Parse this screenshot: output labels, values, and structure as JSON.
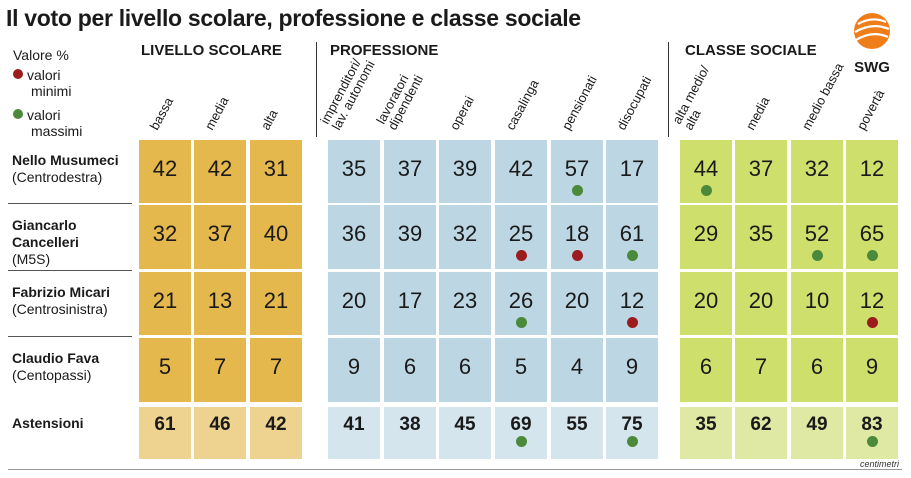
{
  "title": "Il voto per livello scolare, professione e classe sociale",
  "legend": {
    "heading": "Valore %",
    "min_label": [
      "valori",
      "minimi"
    ],
    "max_label": [
      "valori",
      "massimi"
    ],
    "min_color": "#9b1c1c",
    "max_color": "#4a8a3a"
  },
  "brand": "SWG",
  "credit": "centimetri",
  "colors": {
    "scolare": "#e5b84d",
    "scolare_light": "#eed390",
    "professione": "#bcd6e3",
    "professione_light": "#d4e5ee",
    "sociale": "#cfdf6c",
    "sociale_light": "#dfe9a3"
  },
  "chart_data": {
    "type": "table",
    "groups": [
      {
        "key": "scolare",
        "name": "LIVELLO SCOLARE",
        "columns": [
          "bassa",
          "media",
          "alta"
        ]
      },
      {
        "key": "professione",
        "name": "PROFESSIONE",
        "columns": [
          [
            "imprenditori/",
            "lav. autonomi"
          ],
          [
            "lavoratori",
            "dipendenti"
          ],
          [
            "operai"
          ],
          [
            "casalinga"
          ],
          [
            "pensionati"
          ],
          [
            "disocupati"
          ]
        ]
      },
      {
        "key": "sociale",
        "name": "CLASSE SOCIALE",
        "columns": [
          [
            "alta medio/",
            "alta"
          ],
          [
            "media"
          ],
          [
            "medio bassa"
          ],
          [
            "povertà"
          ]
        ]
      }
    ],
    "rows": [
      {
        "name": "Nello Musumeci",
        "sub": "(Centrodestra)",
        "values": [
          42,
          42,
          31,
          35,
          37,
          39,
          42,
          57,
          17,
          44,
          37,
          32,
          12
        ],
        "markers": [
          null,
          null,
          null,
          null,
          null,
          null,
          null,
          "max",
          null,
          "max",
          null,
          null,
          null
        ]
      },
      {
        "name": "Giancarlo Cancelleri",
        "sub": "(M5S)",
        "values": [
          32,
          37,
          40,
          36,
          39,
          32,
          25,
          18,
          61,
          29,
          35,
          52,
          65
        ],
        "markers": [
          null,
          null,
          null,
          null,
          null,
          null,
          "min",
          "min",
          "max",
          null,
          null,
          "max",
          "max"
        ]
      },
      {
        "name": "Fabrizio Micari",
        "sub": "(Centrosinistra)",
        "values": [
          21,
          13,
          21,
          20,
          17,
          23,
          26,
          20,
          12,
          20,
          20,
          10,
          12
        ],
        "markers": [
          null,
          null,
          null,
          null,
          null,
          null,
          "max",
          null,
          "min",
          null,
          null,
          null,
          "min"
        ]
      },
      {
        "name": "Claudio Fava",
        "sub": "(Centopassi)",
        "values": [
          5,
          7,
          7,
          9,
          6,
          6,
          5,
          4,
          9,
          6,
          7,
          6,
          9
        ],
        "markers": [
          null,
          null,
          null,
          null,
          null,
          null,
          null,
          null,
          null,
          null,
          null,
          null,
          null
        ]
      },
      {
        "name": "Astensioni",
        "sub": "",
        "values": [
          61,
          46,
          42,
          41,
          38,
          45,
          69,
          55,
          75,
          35,
          62,
          49,
          83
        ],
        "markers": [
          null,
          null,
          null,
          null,
          null,
          null,
          "max",
          null,
          "max",
          null,
          null,
          null,
          "max"
        ]
      }
    ]
  }
}
